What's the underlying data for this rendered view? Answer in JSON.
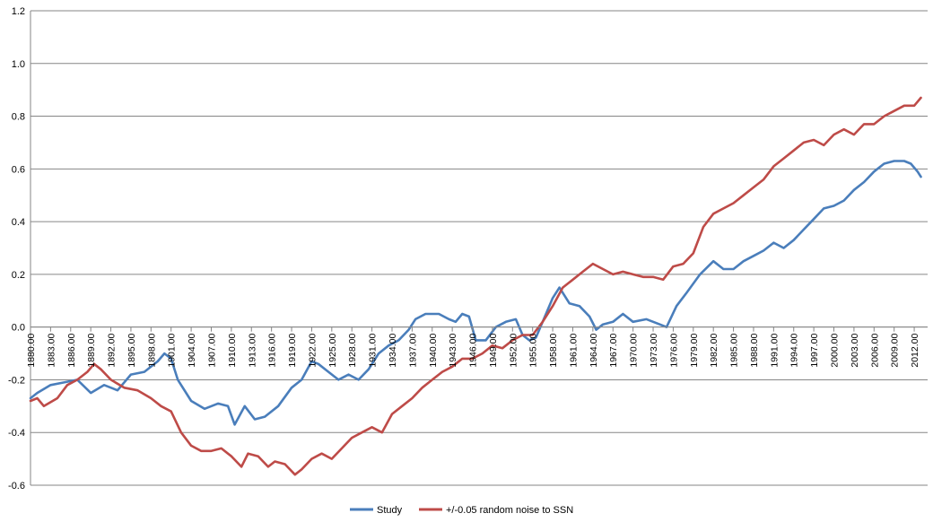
{
  "chart_data": {
    "type": "line",
    "title": "",
    "xlabel": "",
    "ylabel": "",
    "ylim": [
      -0.6,
      1.2
    ],
    "yticks": [
      -0.6,
      -0.4,
      -0.2,
      0.0,
      0.2,
      0.4,
      0.6,
      0.8,
      1.0,
      1.2
    ],
    "ytick_labels": [
      "-0.6",
      "-0.4",
      "-0.2",
      "0.0",
      "0.2",
      "0.4",
      "0.6",
      "0.8",
      "1.0",
      "1.2"
    ],
    "xlim": [
      1880,
      2014
    ],
    "xticks": [
      1880,
      1883,
      1886,
      1889,
      1892,
      1895,
      1898,
      1901,
      1904,
      1907,
      1910,
      1913,
      1916,
      1919,
      1922,
      1925,
      1928,
      1931,
      1934,
      1937,
      1940,
      1943,
      1946,
      1949,
      1952,
      1955,
      1958,
      1961,
      1964,
      1967,
      1970,
      1973,
      1976,
      1979,
      1982,
      1985,
      1988,
      1991,
      1994,
      1997,
      2000,
      2003,
      2006,
      2009,
      2012
    ],
    "xtick_labels": [
      "1880.00",
      "1883.00",
      "1886.00",
      "1889.00",
      "1892.00",
      "1895.00",
      "1898.00",
      "1901.00",
      "1904.00",
      "1907.00",
      "1910.00",
      "1913.00",
      "1916.00",
      "1919.00",
      "1922.00",
      "1925.00",
      "1928.00",
      "1931.00",
      "1934.00",
      "1937.00",
      "1940.00",
      "1943.00",
      "1946.00",
      "1949.00",
      "1952.00",
      "1955.00",
      "1958.00",
      "1961.00",
      "1964.00",
      "1967.00",
      "1970.00",
      "1973.00",
      "1976.00",
      "1979.00",
      "1982.00",
      "1985.00",
      "1988.00",
      "1991.00",
      "1994.00",
      "1997.00",
      "2000.00",
      "2003.00",
      "2006.00",
      "2009.00",
      "2012.00"
    ],
    "grid": true,
    "legend_position": "bottom",
    "series": [
      {
        "name": "Study",
        "color": "#4a7ebb",
        "x": [
          1880,
          1881,
          1883,
          1885,
          1887,
          1889,
          1891,
          1893,
          1895,
          1897,
          1899,
          1900,
          1901,
          1902,
          1904,
          1906,
          1908,
          1909.5,
          1910.5,
          1912,
          1913.5,
          1915,
          1917,
          1919,
          1920.5,
          1922,
          1923,
          1924.5,
          1926,
          1927.5,
          1929,
          1930.5,
          1932,
          1933.5,
          1935,
          1936.5,
          1937.5,
          1939,
          1941,
          1942.5,
          1943.5,
          1944.5,
          1945.5,
          1946.5,
          1948,
          1949.5,
          1951,
          1952.5,
          1953.5,
          1954.5,
          1955.5,
          1957,
          1958,
          1959,
          1960.5,
          1962,
          1963.5,
          1964.5,
          1965.5,
          1967,
          1968.5,
          1970,
          1972,
          1974,
          1975,
          1976.5,
          1978,
          1980,
          1982,
          1983.5,
          1985,
          1986.5,
          1988,
          1989.5,
          1991,
          1992.5,
          1994,
          1995.5,
          1997,
          1998.5,
          2000,
          2001.5,
          2003,
          2004.5,
          2006,
          2007.5,
          2009,
          2010.5,
          2011.5,
          2012.5,
          2013
        ],
        "values": [
          -0.27,
          -0.25,
          -0.22,
          -0.21,
          -0.2,
          -0.25,
          -0.22,
          -0.24,
          -0.18,
          -0.17,
          -0.13,
          -0.1,
          -0.12,
          -0.2,
          -0.28,
          -0.31,
          -0.29,
          -0.3,
          -0.37,
          -0.3,
          -0.35,
          -0.34,
          -0.3,
          -0.23,
          -0.2,
          -0.13,
          -0.14,
          -0.17,
          -0.2,
          -0.18,
          -0.2,
          -0.16,
          -0.1,
          -0.07,
          -0.05,
          -0.01,
          0.03,
          0.05,
          0.05,
          0.03,
          0.02,
          0.05,
          0.04,
          -0.05,
          -0.05,
          0.0,
          0.02,
          0.03,
          -0.03,
          -0.05,
          -0.04,
          0.05,
          0.11,
          0.15,
          0.09,
          0.08,
          0.04,
          -0.01,
          0.01,
          0.02,
          0.05,
          0.02,
          0.03,
          0.01,
          0.0,
          0.08,
          0.13,
          0.2,
          0.25,
          0.22,
          0.22,
          0.25,
          0.27,
          0.29,
          0.32,
          0.3,
          0.33,
          0.37,
          0.41,
          0.45,
          0.46,
          0.48,
          0.52,
          0.55,
          0.59,
          0.62,
          0.63,
          0.63,
          0.62,
          0.59,
          0.57
        ]
      },
      {
        "name": "+/-0.05 random noise to SSN",
        "color": "#be4b48",
        "x": [
          1880,
          1881,
          1882,
          1884,
          1885.5,
          1887,
          1888.5,
          1889.5,
          1890.5,
          1892,
          1894,
          1896,
          1898,
          1899.5,
          1901,
          1902.5,
          1904,
          1905.5,
          1907,
          1908.5,
          1910,
          1911.5,
          1912.5,
          1914,
          1915.5,
          1916.5,
          1918,
          1919.5,
          1920.5,
          1922,
          1923.5,
          1925,
          1926.5,
          1928,
          1929.5,
          1931,
          1932.5,
          1934,
          1935.5,
          1937,
          1938.5,
          1940,
          1941.5,
          1943,
          1944.5,
          1946,
          1947.5,
          1949,
          1950.5,
          1952,
          1953.5,
          1955,
          1956.5,
          1958,
          1959.5,
          1961,
          1962.5,
          1964,
          1965.5,
          1967,
          1968.5,
          1970,
          1971.5,
          1973,
          1974.5,
          1976,
          1977.5,
          1979,
          1980.5,
          1982,
          1983.5,
          1985,
          1986.5,
          1988,
          1989.5,
          1991,
          1992.5,
          1994,
          1995.5,
          1997,
          1998.5,
          2000,
          2001.5,
          2003,
          2004.5,
          2006,
          2007.5,
          2009,
          2010.5,
          2012,
          2013
        ],
        "values": [
          -0.28,
          -0.27,
          -0.3,
          -0.27,
          -0.22,
          -0.2,
          -0.17,
          -0.14,
          -0.16,
          -0.2,
          -0.23,
          -0.24,
          -0.27,
          -0.3,
          -0.32,
          -0.4,
          -0.45,
          -0.47,
          -0.47,
          -0.46,
          -0.49,
          -0.53,
          -0.48,
          -0.49,
          -0.53,
          -0.51,
          -0.52,
          -0.56,
          -0.54,
          -0.5,
          -0.48,
          -0.5,
          -0.46,
          -0.42,
          -0.4,
          -0.38,
          -0.4,
          -0.33,
          -0.3,
          -0.27,
          -0.23,
          -0.2,
          -0.17,
          -0.15,
          -0.12,
          -0.12,
          -0.1,
          -0.07,
          -0.08,
          -0.05,
          -0.03,
          -0.03,
          0.02,
          0.08,
          0.15,
          0.18,
          0.21,
          0.24,
          0.22,
          0.2,
          0.21,
          0.2,
          0.19,
          0.19,
          0.18,
          0.23,
          0.24,
          0.28,
          0.38,
          0.43,
          0.45,
          0.47,
          0.5,
          0.53,
          0.56,
          0.61,
          0.64,
          0.67,
          0.7,
          0.71,
          0.69,
          0.73,
          0.75,
          0.73,
          0.77,
          0.77,
          0.8,
          0.82,
          0.84,
          0.84,
          0.87
        ]
      }
    ]
  }
}
